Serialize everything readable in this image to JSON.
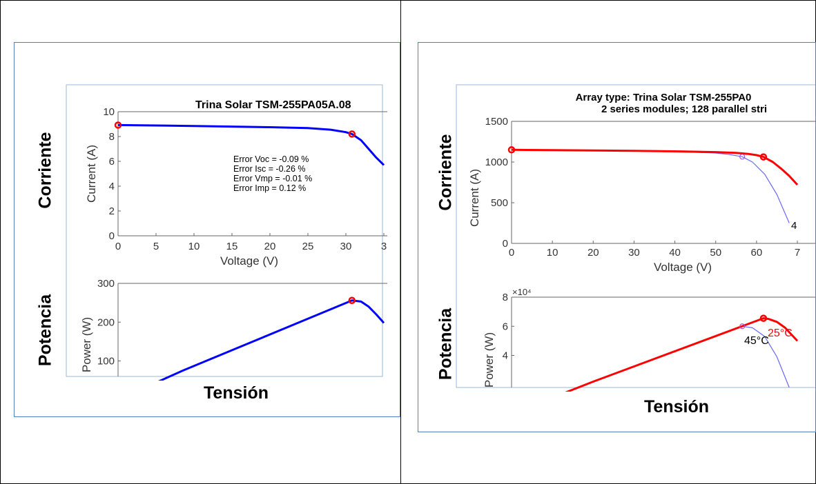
{
  "labels": {
    "corriente": "Corriente",
    "potencia": "Potencia",
    "tension": "Tensión"
  },
  "colors": {
    "frame_border": "#4f7fbd",
    "left_curve": "#0000ff",
    "right_curve_25": "#ff0000",
    "right_curve_45": "#6666ff",
    "marker": "#ff0000"
  },
  "chart_data": [
    {
      "type": "line",
      "title": "Trina Solar TSM-255PA05A.08",
      "xlabel": "Voltage (V)",
      "ylabel": "Current (A)",
      "xlim": [
        0,
        35
      ],
      "ylim": [
        0,
        10
      ],
      "xticks": [
        "0",
        "5",
        "10",
        "15",
        "20",
        "25",
        "30",
        "3"
      ],
      "yticks": [
        "0",
        "2",
        "4",
        "6",
        "8",
        "10"
      ],
      "annotations": [
        "Error Voc = -0.09  %",
        "Error Isc = -0.26  %",
        "Error Vmp = -0.01  %",
        "Error Imp = 0.12    %"
      ],
      "series": [
        {
          "x": [
            0,
            5,
            10,
            15,
            20,
            25,
            28,
            30,
            30.8,
            32,
            33,
            34,
            35
          ],
          "y": [
            8.92,
            8.89,
            8.85,
            8.8,
            8.75,
            8.68,
            8.55,
            8.35,
            8.2,
            7.7,
            7.0,
            6.3,
            5.7
          ]
        }
      ],
      "markers": [
        {
          "x": 0,
          "y": 8.92
        },
        {
          "x": 30.8,
          "y": 8.2
        }
      ]
    },
    {
      "type": "line",
      "xlabel": "",
      "ylabel": "Power (W)",
      "xlim": [
        0,
        35
      ],
      "ylim": [
        60,
        300
      ],
      "yticks": [
        "100",
        "200",
        "300"
      ],
      "series": [
        {
          "x": [
            0,
            8.5,
            30.8,
            32,
            33,
            34,
            35
          ],
          "y": [
            0,
            75,
            256,
            253,
            240,
            220,
            198
          ]
        }
      ],
      "markers": [
        {
          "x": 30.8,
          "y": 256
        }
      ]
    },
    {
      "type": "line",
      "title": "Array type: Trina Solar TSM-255PA0",
      "subtitle": "2 series modules; 128 parallel stri",
      "xlabel": "Voltage (V)",
      "ylabel": "Current (A)",
      "xlim": [
        0,
        70
      ],
      "ylim": [
        0,
        1500
      ],
      "xticks": [
        "0",
        "10",
        "20",
        "30",
        "40",
        "50",
        "60",
        "7"
      ],
      "yticks": [
        "0",
        "500",
        "1000",
        "1500"
      ],
      "annotations": [
        "4"
      ],
      "series": [
        {
          "x": [
            0,
            10,
            20,
            30,
            40,
            50,
            55,
            58,
            60,
            61.7,
            64,
            66,
            68,
            70
          ],
          "y": [
            1150,
            1146,
            1142,
            1137,
            1131,
            1122,
            1113,
            1100,
            1085,
            1063,
            1000,
            920,
            830,
            720
          ]
        },
        {
          "x": [
            0,
            10,
            20,
            30,
            40,
            50,
            53,
            56.5,
            59,
            62,
            65,
            68
          ],
          "y": [
            1152,
            1147,
            1142,
            1136,
            1128,
            1110,
            1095,
            1065,
            1000,
            850,
            600,
            250
          ]
        }
      ],
      "markers": [
        {
          "x": 0,
          "y": 1150
        },
        {
          "x": 61.7,
          "y": 1063
        },
        {
          "x": 56.5,
          "y": 1065
        }
      ]
    },
    {
      "type": "line",
      "xlabel": "",
      "ylabel": "Power (W)",
      "xlim": [
        0,
        70
      ],
      "ylim": [
        1.8,
        8
      ],
      "yticks": [
        "4",
        "6",
        "8"
      ],
      "exponent_label": "×10⁴",
      "annotations": [
        "25°C",
        "45°C"
      ],
      "series": [
        {
          "x": [
            0,
            20,
            61.7,
            63,
            65,
            67,
            70
          ],
          "y": [
            0,
            2.2,
            6.55,
            6.5,
            6.3,
            5.9,
            5.0
          ]
        },
        {
          "x": [
            56.5,
            59,
            62,
            65,
            68
          ],
          "y": [
            6.0,
            5.9,
            5.3,
            3.9,
            1.8
          ]
        }
      ],
      "markers": [
        {
          "x": 61.7,
          "y": 6.55
        },
        {
          "x": 56.5,
          "y": 6.0
        }
      ]
    }
  ]
}
